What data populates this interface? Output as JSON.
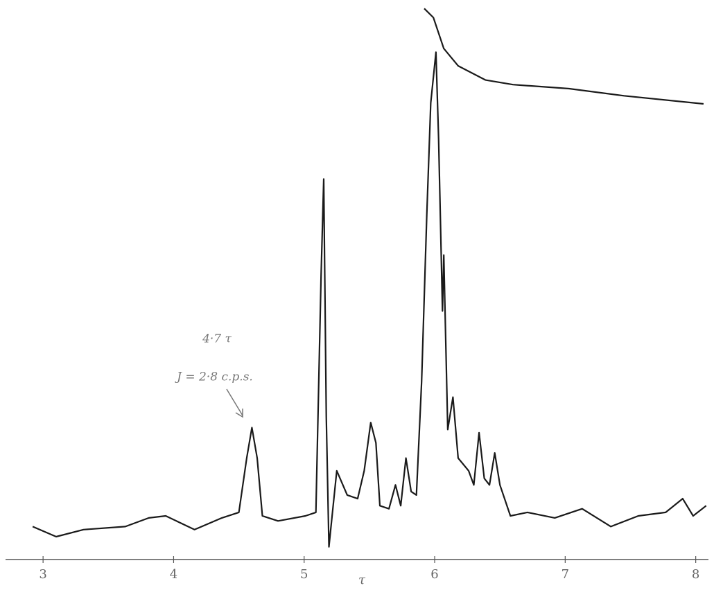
{
  "chart_data": {
    "type": "line",
    "x_label": "τ",
    "annotations": [
      "4·7 τ",
      "J = 2·8 c.p.s."
    ],
    "xlim": [
      2.67,
      8.14
    ],
    "xticks": [
      3,
      4,
      5,
      6,
      7,
      8
    ],
    "ylim": [
      0,
      110
    ],
    "series": [
      {
        "color": "#1a1a1a",
        "x": [
          2.92,
          3.1,
          3.31,
          3.63,
          3.81,
          3.94,
          4.16,
          4.37,
          4.5,
          4.56,
          4.6,
          4.64,
          4.68,
          4.8,
          5.01,
          5.09,
          5.13,
          5.15,
          5.17,
          5.19,
          5.25,
          5.33,
          5.41,
          5.46,
          5.51,
          5.55,
          5.58,
          5.65,
          5.7,
          5.74,
          5.78,
          5.82,
          5.86,
          5.9,
          5.94,
          5.97,
          6.01,
          6.03,
          6.06,
          6.07,
          6.1,
          6.14,
          6.18,
          6.26,
          6.3,
          6.34,
          6.38,
          6.42,
          6.46,
          6.5,
          6.58,
          6.71,
          6.92,
          7.13,
          7.35,
          7.56,
          7.77,
          7.9,
          7.98,
          8.08
        ],
        "values": [
          6.5,
          4.5,
          5.9,
          6.5,
          8.2,
          8.6,
          5.9,
          8.2,
          9.3,
          20,
          26,
          20,
          8.6,
          7.6,
          8.6,
          9.3,
          56,
          75,
          28,
          2.5,
          17.5,
          12.7,
          12,
          17.5,
          27,
          23,
          10.6,
          10,
          14.7,
          10.6,
          20,
          13.4,
          12.7,
          35,
          68,
          90,
          100,
          83,
          49,
          60,
          25.6,
          32,
          20,
          17.5,
          14.7,
          25,
          16,
          14.7,
          21,
          14.7,
          8.6,
          9.3,
          8.2,
          10,
          6.5,
          8.6,
          9.3,
          12,
          8.6,
          10.6
        ]
      },
      {
        "color": "#1a1a1a",
        "x": [
          5.92,
          5.99,
          6.07,
          6.18,
          6.39,
          6.6,
          7.03,
          7.45,
          8.06
        ],
        "values": [
          108.6,
          106.8,
          100.7,
          97.3,
          94.5,
          93.6,
          92.8,
          91.4,
          89.8
        ]
      }
    ]
  }
}
